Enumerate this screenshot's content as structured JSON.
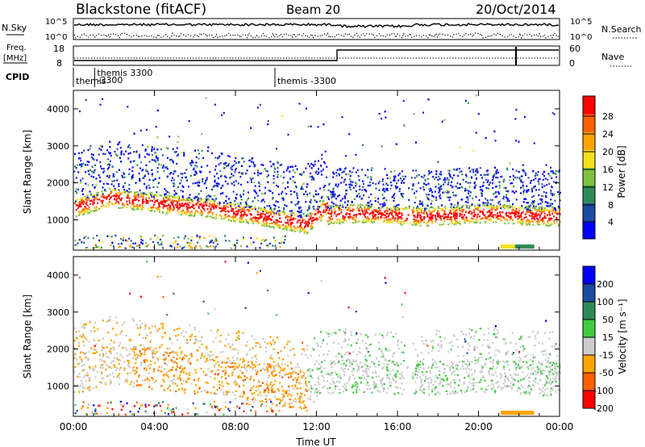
{
  "header": {
    "station": "Blackstone (fitACF)",
    "beam": "Beam 20",
    "date": "20/Oct/2014"
  },
  "panels": {
    "nsky_label": "N.Sky",
    "nsearch_label": "N.Search",
    "freq_label_1": "Freq.",
    "freq_label_2": "[MHz]",
    "nave_label": "Nave",
    "cpid_label": "CPID",
    "nsky_ticks": [
      "10^5",
      "10^0"
    ],
    "nsearch_ticks": [
      "10^5",
      "10^0"
    ],
    "freq_ticks": [
      "18",
      "8"
    ],
    "nave_ticks": [
      "60",
      "0"
    ]
  },
  "cpid_segments": [
    {
      "start_hr": 0.0,
      "label": "themis"
    },
    {
      "start_hr": 1.05,
      "label": "themis 3300"
    },
    {
      "start_hr": 1.05,
      "label": "-3300"
    },
    {
      "start_hr": 9.95,
      "label": "themis -3300"
    }
  ],
  "chart_data": [
    {
      "type": "heatmap",
      "panel": "power",
      "ylabel": "Slant Range [km]",
      "yticks": [
        "1000",
        "2000",
        "3000",
        "4000"
      ],
      "ylim": [
        180,
        4500
      ],
      "xlim_hours": [
        0,
        24
      ],
      "colorbar_label": "Power [dB]",
      "colorbar_ticks": [
        "28",
        "24",
        "20",
        "16",
        "12",
        "8",
        "4"
      ],
      "colors": [
        "#0000ff",
        "#1e4aa0",
        "#2e8b57",
        "#80c040",
        "#f5e020",
        "#ffa500",
        "#ff6000",
        "#ff0000"
      ]
    },
    {
      "type": "heatmap",
      "panel": "velocity",
      "ylabel": "Slant Range [km]",
      "yticks": [
        "1000",
        "2000",
        "3000",
        "4000"
      ],
      "ylim": [
        180,
        4500
      ],
      "xlim_hours": [
        0,
        24
      ],
      "xlabel": "Time UT",
      "xticks": [
        "00:00",
        "04:00",
        "08:00",
        "12:00",
        "16:00",
        "20:00",
        "00:00"
      ],
      "colorbar_label": "Velocity [m s⁻¹]",
      "colorbar_ticks": [
        "200",
        "100",
        "50",
        "15",
        "-15",
        "-50",
        "-100",
        "-200"
      ],
      "colors": [
        "#ff0000",
        "#ff6000",
        "#ffa500",
        "#cccccc",
        "#40cc40",
        "#2e8b57",
        "#1e4aa0",
        "#0000ff"
      ]
    }
  ]
}
